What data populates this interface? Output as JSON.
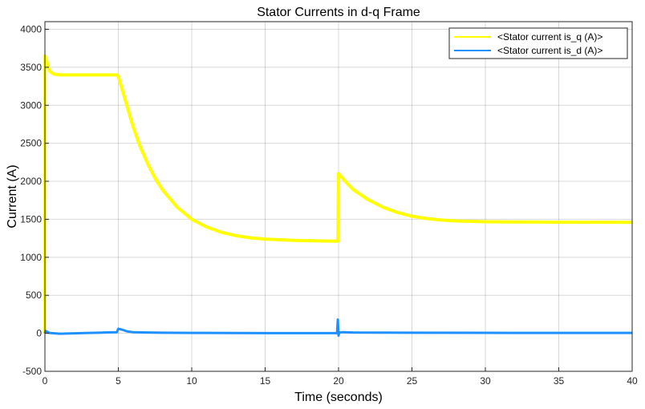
{
  "chart_data": {
    "type": "line",
    "title": "Stator Currents in d-q Frame",
    "xlabel": "Time (seconds)",
    "ylabel": "Current (A)",
    "xlim": [
      0,
      40
    ],
    "ylim": [
      -500,
      4100
    ],
    "xticks": [
      0,
      5,
      10,
      15,
      20,
      25,
      30,
      35,
      40
    ],
    "yticks": [
      -500,
      0,
      500,
      1000,
      1500,
      2000,
      2500,
      3000,
      3500,
      4000
    ],
    "grid": true,
    "legend_position": "top-right",
    "series": [
      {
        "name": "<Stator current is_q (A)>",
        "color": "#ffff00",
        "x": [
          0,
          0.01,
          0.1,
          0.3,
          0.6,
          1,
          2,
          3,
          4,
          4.9,
          5,
          5.5,
          6,
          6.5,
          7,
          7.5,
          8,
          9,
          10,
          11,
          12,
          13,
          14,
          15,
          16,
          17,
          18,
          19,
          19.95,
          20,
          20.5,
          21,
          22,
          23,
          24,
          25,
          26,
          27,
          28,
          30,
          32,
          35,
          38,
          40
        ],
        "y": [
          0,
          3650,
          3600,
          3450,
          3410,
          3400,
          3400,
          3400,
          3400,
          3400,
          3380,
          3050,
          2720,
          2450,
          2230,
          2040,
          1890,
          1660,
          1500,
          1400,
          1330,
          1285,
          1255,
          1240,
          1230,
          1222,
          1218,
          1215,
          1212,
          2100,
          1990,
          1890,
          1760,
          1660,
          1590,
          1540,
          1510,
          1490,
          1478,
          1468,
          1465,
          1462,
          1461,
          1460
        ]
      },
      {
        "name": "<Stator current is_d (A)>",
        "color": "#1e90ff",
        "x": [
          0,
          0.05,
          0.3,
          1,
          2,
          3,
          4,
          4.9,
          5,
          5.3,
          5.6,
          6,
          7,
          8,
          10,
          15,
          19.9,
          19.95,
          20,
          20.05,
          20.3,
          21,
          25,
          30,
          35,
          40
        ],
        "y": [
          0,
          30,
          5,
          -5,
          0,
          5,
          10,
          15,
          60,
          45,
          25,
          15,
          10,
          8,
          5,
          3,
          2,
          180,
          -30,
          10,
          15,
          10,
          8,
          6,
          5,
          5
        ]
      }
    ]
  }
}
